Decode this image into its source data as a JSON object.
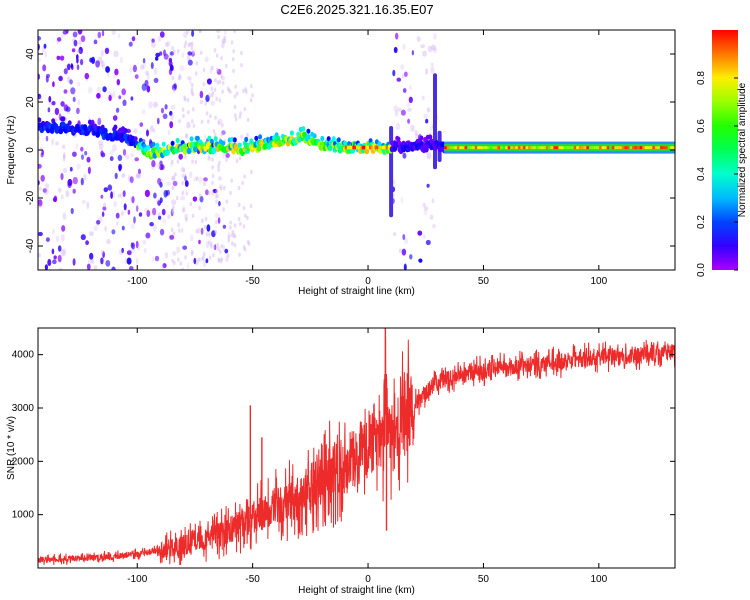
{
  "title": "C2E6.2025.321.16.35.E07",
  "chart_data": [
    {
      "type": "heatmap",
      "xlabel": "Height of straight line (km)",
      "ylabel": "Frequency (Hz)",
      "xlim": [
        -143,
        133
      ],
      "ylim": [
        -50,
        50
      ],
      "x_ticks": [
        -100,
        -50,
        0,
        50,
        100
      ],
      "y_ticks": [
        -40,
        -20,
        0,
        20,
        40
      ],
      "colorbar": {
        "label": "Normalized spectral amplitude",
        "range": [
          0,
          1
        ],
        "ticks": [
          0.0,
          0.2,
          0.4,
          0.6,
          0.8
        ],
        "tick_labels": [
          "0.0",
          "0.2",
          "0.4",
          "0.6",
          "0.8"
        ]
      },
      "ridge": {
        "x": [
          -143,
          -120,
          -105,
          -100,
          -95,
          -85,
          -75,
          -65,
          -55,
          -45,
          -35,
          -28,
          -20,
          -10,
          0,
          5,
          10,
          20,
          30,
          33,
          60,
          100,
          133
        ],
        "frequency": [
          10,
          8,
          5,
          3,
          -2,
          0,
          1,
          1,
          0,
          2,
          4,
          5,
          2,
          1,
          1,
          0,
          1,
          1,
          2,
          1,
          1,
          1,
          1
        ]
      },
      "noise_bands": [
        [
          -143,
          -85
        ],
        [
          -85,
          -60
        ],
        [
          10,
          30
        ]
      ],
      "vertical_streaks": [
        {
          "x": 10,
          "from": -28,
          "to": 10
        },
        {
          "x": 29,
          "from": -8,
          "to": 32
        },
        {
          "x": 31,
          "from": -5,
          "to": 8
        }
      ]
    },
    {
      "type": "line",
      "xlabel": "Height of straight line (km)",
      "ylabel": "SNR (10 * v/v)",
      "xlim": [
        -143,
        133
      ],
      "ylim": [
        0,
        4500
      ],
      "x_ticks": [
        -100,
        -50,
        0,
        50,
        100
      ],
      "y_ticks": [
        1000,
        2000,
        3000,
        4000
      ],
      "line_color": "#ee2b2b",
      "series": [
        {
          "x": [
            -143,
            -130,
            -120,
            -110,
            -100,
            -90,
            -80,
            -70,
            -60,
            -50,
            -40,
            -30,
            -20,
            -10,
            0,
            5,
            8,
            10,
            15,
            20,
            25,
            30,
            35,
            40,
            50,
            60,
            70,
            80,
            90,
            100,
            110,
            120,
            133
          ],
          "values": [
            150,
            170,
            190,
            220,
            260,
            330,
            420,
            550,
            700,
            950,
            1150,
            1350,
            1650,
            1950,
            2300,
            2500,
            3000,
            2300,
            2800,
            3050,
            3300,
            3500,
            3550,
            3600,
            3700,
            3750,
            3800,
            3850,
            3900,
            3950,
            3950,
            4000,
            4050
          ]
        }
      ],
      "spikes": [
        {
          "x": -51,
          "value": 3050
        },
        {
          "x": -46,
          "value": 2450
        },
        {
          "x": 7.5,
          "value": 4500
        },
        {
          "x": 8,
          "value": 700
        }
      ]
    }
  ]
}
